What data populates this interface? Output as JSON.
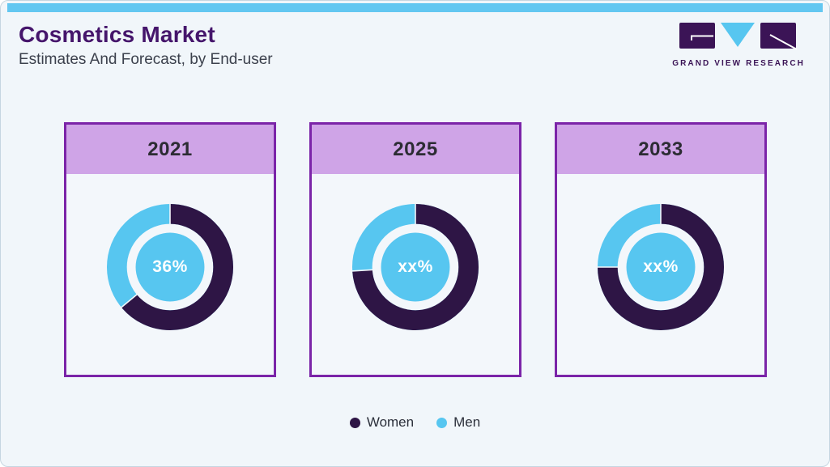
{
  "page": {
    "title": "Cosmetics Market",
    "subtitle": "Estimates And Forecast, by End-user",
    "brand_name": "GRAND VIEW RESEARCH"
  },
  "colors": {
    "accent_blue": "#63c7f1",
    "men_blue": "#57c6f0",
    "women_dark_purple": "#2e1545",
    "card_border_purple": "#7b24a8",
    "card_header_lilac": "#cfa4e7",
    "card_background": "#f3f7fb",
    "title_purple": "#45156b"
  },
  "legend": {
    "items": [
      {
        "label": "Women",
        "color": "#2e1545"
      },
      {
        "label": "Men",
        "color": "#57c6f0"
      }
    ]
  },
  "chart_data": [
    {
      "type": "pie",
      "title": "2021",
      "center_label": "36%",
      "series": [
        {
          "name": "Women",
          "value": 64
        },
        {
          "name": "Men",
          "value": 36
        }
      ]
    },
    {
      "type": "pie",
      "title": "2025",
      "center_label": "xx%",
      "series": [
        {
          "name": "Women",
          "value": 74
        },
        {
          "name": "Men",
          "value": 26
        }
      ]
    },
    {
      "type": "pie",
      "title": "2033",
      "center_label": "xx%",
      "series": [
        {
          "name": "Women",
          "value": 75
        },
        {
          "name": "Men",
          "value": 25
        }
      ]
    }
  ]
}
